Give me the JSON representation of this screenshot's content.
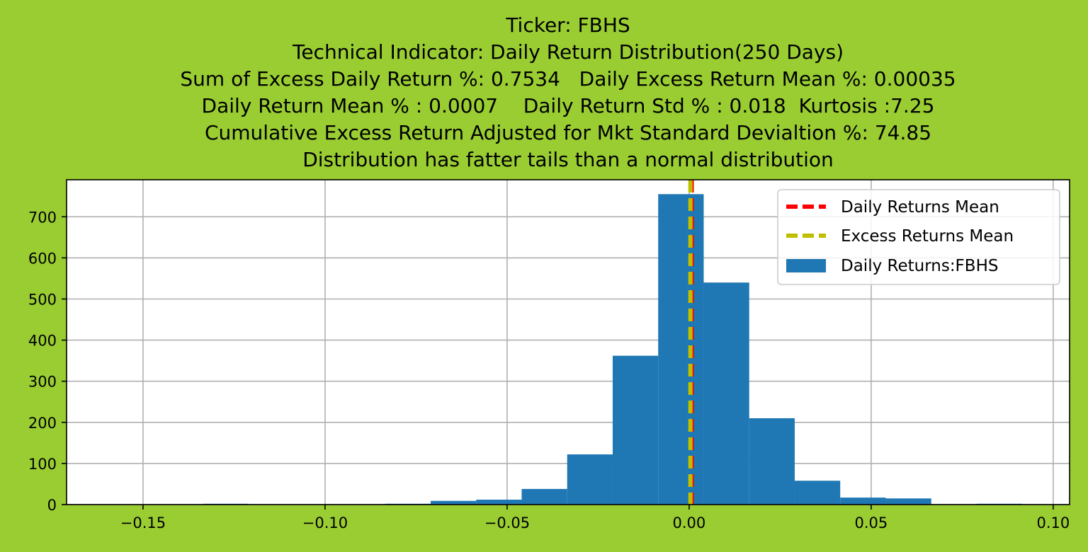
{
  "chart_data": {
    "type": "bar",
    "title_lines": [
      "Ticker: FBHS",
      "Technical Indicator: Daily Return Distribution(250 Days)",
      "Sum of Excess Daily Return %: 0.7534   Daily Excess Return Mean %: 0.00035",
      "Daily Return Mean % : 0.0007    Daily Return Std % : 0.018  Kurtosis :7.25",
      "Cumulative Excess Return Adjusted for Mkt Standard Devialtion %: 74.85",
      "Distribution has fatter tails than a normal distribution"
    ],
    "xlabel": "",
    "ylabel": "",
    "xlim": [
      -0.171,
      0.1045
    ],
    "ylim": [
      0,
      790
    ],
    "x_ticks": [
      -0.15,
      -0.1,
      -0.05,
      0.0,
      0.05,
      0.1
    ],
    "x_tick_labels": [
      "−0.15",
      "−0.10",
      "−0.05",
      "0.00",
      "0.05",
      "0.10"
    ],
    "y_ticks": [
      0,
      100,
      200,
      300,
      400,
      500,
      600,
      700
    ],
    "y_tick_labels": [
      "0",
      "100",
      "200",
      "300",
      "400",
      "500",
      "600",
      "700"
    ],
    "grid": true,
    "legend_position": "top-right",
    "histogram": {
      "name": "Daily Returns:FBHS",
      "color": "#1f77b4",
      "bin_edges": [
        -0.1335,
        -0.121,
        -0.1085,
        -0.096,
        -0.0835,
        -0.071,
        -0.0585,
        -0.046,
        -0.0335,
        -0.021,
        -0.0085,
        0.004,
        0.0165,
        0.029,
        0.0415,
        0.054,
        0.0665,
        0.079,
        0.0915
      ],
      "counts": [
        2,
        0,
        0,
        0,
        2,
        9,
        12,
        38,
        122,
        362,
        755,
        540,
        210,
        58,
        17,
        15,
        0,
        2
      ]
    },
    "vlines": [
      {
        "name": "Daily Returns Mean",
        "x": 0.0007,
        "color": "#ff0000"
      },
      {
        "name": "Excess Returns Mean",
        "x": 0.00035,
        "color": "#bfbf00"
      }
    ],
    "legend": [
      {
        "label": "Daily Returns Mean",
        "kind": "dashed-line",
        "color": "#ff0000"
      },
      {
        "label": "Excess Returns Mean",
        "kind": "dashed-line",
        "color": "#bfbf00"
      },
      {
        "label": "Daily Returns:FBHS",
        "kind": "patch",
        "color": "#1f77b4"
      }
    ]
  },
  "colors": {
    "background": "#9acd32",
    "plot_area": "#ffffff",
    "grid": "#b0b0b0",
    "axes": "#000000"
  }
}
